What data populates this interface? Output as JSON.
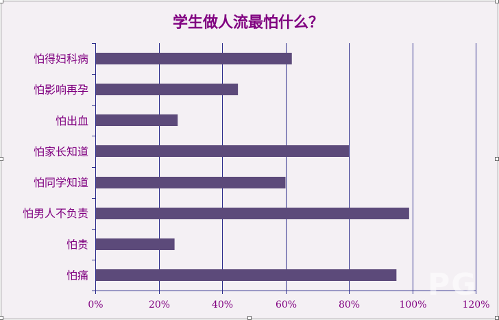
{
  "chart_data": {
    "type": "bar",
    "orientation": "horizontal",
    "title": "学生做人流最怕什么？",
    "categories": [
      "怕得妇科病",
      "怕影响再孕",
      "怕出血",
      "怕家长知道",
      "怕同学知道",
      "怕男人不负责",
      "怕贵",
      "怕痛"
    ],
    "values": [
      62,
      45,
      26,
      80,
      60,
      99,
      25,
      95
    ],
    "value_unit": "%",
    "xlim": [
      0,
      120
    ],
    "xticks": [
      "0%",
      "20%",
      "40%",
      "60%",
      "80%",
      "100%",
      "120%"
    ],
    "grid": "vertical",
    "legend": "none"
  },
  "colors": {
    "bar": "#5c4a7a",
    "grid": "#2a2a8a",
    "axis_text": "#800080",
    "title": "#800080",
    "background": "#f4f0f4"
  }
}
